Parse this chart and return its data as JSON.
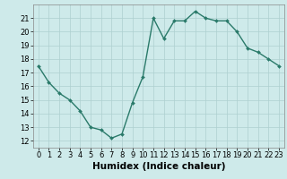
{
  "x": [
    0,
    1,
    2,
    3,
    4,
    5,
    6,
    7,
    8,
    9,
    10,
    11,
    12,
    13,
    14,
    15,
    16,
    17,
    18,
    19,
    20,
    21,
    22,
    23
  ],
  "y": [
    17.5,
    16.3,
    15.5,
    15.0,
    14.2,
    13.0,
    12.8,
    12.2,
    12.5,
    14.8,
    16.7,
    21.0,
    19.5,
    20.8,
    20.8,
    21.5,
    21.0,
    20.8,
    20.8,
    20.0,
    18.8,
    18.5,
    18.0,
    17.5
  ],
  "line_color": "#2a7a6a",
  "marker": "D",
  "marker_size": 2.0,
  "bg_color": "#ceeaea",
  "grid_color": "#aed0d0",
  "xlabel": "Humidex (Indice chaleur)",
  "xlim": [
    -0.5,
    23.5
  ],
  "ylim": [
    11.5,
    22.0
  ],
  "xticks": [
    0,
    1,
    2,
    3,
    4,
    5,
    6,
    7,
    8,
    9,
    10,
    11,
    12,
    13,
    14,
    15,
    16,
    17,
    18,
    19,
    20,
    21,
    22,
    23
  ],
  "yticks": [
    12,
    13,
    14,
    15,
    16,
    17,
    18,
    19,
    20,
    21
  ],
  "tick_fontsize": 6.0,
  "xlabel_fontsize": 7.5,
  "line_width": 1.0
}
